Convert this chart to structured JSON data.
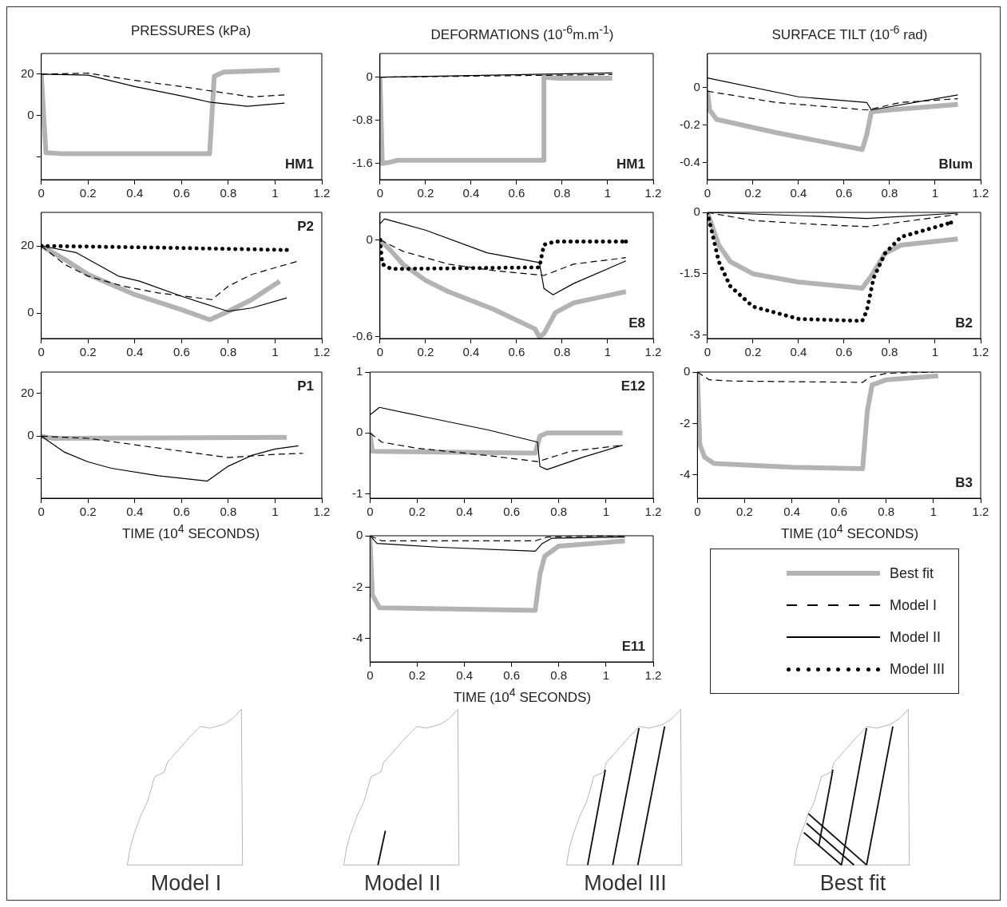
{
  "chart_data": [
    {
      "type": "line",
      "title": "PRESSURES (kPa)",
      "xlim": [
        0,
        1.2
      ],
      "xticks": [
        0,
        0.2,
        0.4,
        0.6,
        0.8,
        1,
        1.2
      ],
      "ylim": [
        -31,
        30
      ],
      "yticks": [
        {
          "value": -20,
          "label": null
        },
        0,
        20
      ],
      "annotations": [
        "HM1"
      ],
      "series": [
        {
          "color": "#b3b3b3",
          "line_style": "solid",
          "x": [
            0,
            0.02,
            0.1,
            0.72,
            0.74,
            0.78,
            1.02
          ],
          "values": [
            20,
            -18,
            -18.5,
            -18.5,
            19,
            21,
            22
          ]
        },
        {
          "color": "#000000",
          "line_style": "dashed",
          "x": [
            0,
            0.2,
            0.4,
            0.6,
            0.75,
            0.9,
            1.04
          ],
          "values": [
            20,
            20.5,
            17,
            14,
            11.5,
            9,
            10
          ]
        },
        {
          "color": "#000000",
          "line_style": "solid",
          "x": [
            0,
            0.2,
            0.4,
            0.6,
            0.72,
            0.88,
            1.04
          ],
          "values": [
            20,
            19.5,
            14,
            9.5,
            6.5,
            4.5,
            6
          ]
        }
      ]
    },
    {
      "type": "line",
      "title": "DEFORMATIONS (10$^{-6}$m.m$^{-1}$)",
      "xlim": [
        0,
        1.2
      ],
      "xticks": [
        0,
        0.2,
        0.4,
        0.6,
        0.8,
        1,
        1.2
      ],
      "ylim": [
        -1.9,
        0.44
      ],
      "yticks": [
        -1.6,
        -0.8,
        0
      ],
      "annotations": [
        "HM1"
      ],
      "series": [
        {
          "color": "#b3b3b3",
          "line_style": "solid",
          "x": [
            0,
            0.01,
            0.04,
            0.08,
            0.72,
            0.72,
            0.78,
            1.02
          ],
          "values": [
            0,
            -1.6,
            -1.58,
            -1.54,
            -1.54,
            0,
            -0.02,
            -0.02
          ]
        },
        {
          "color": "#000000",
          "line_style": "dashed",
          "x": [
            0,
            1.02
          ],
          "values": [
            0,
            0.05
          ]
        },
        {
          "color": "#000000",
          "line_style": "solid",
          "x": [
            0,
            1.02
          ],
          "values": [
            0,
            0.08
          ]
        }
      ]
    },
    {
      "type": "line",
      "title": "SURFACE TILT (10$^{-6}$ rad)",
      "xlim": [
        0,
        1.2
      ],
      "xticks": [
        0,
        0.2,
        0.4,
        0.6,
        0.8,
        1,
        1.2
      ],
      "ylim": [
        -0.49,
        0.18
      ],
      "yticks": [
        -0.4,
        -0.2,
        0
      ],
      "annotations": [
        "Blum"
      ],
      "series": [
        {
          "color": "#b3b3b3",
          "line_style": "solid",
          "x": [
            0,
            0.01,
            0.04,
            0.3,
            0.68,
            0.7,
            0.72,
            0.8,
            1.1
          ],
          "values": [
            -0.02,
            -0.12,
            -0.17,
            -0.24,
            -0.33,
            -0.25,
            -0.13,
            -0.12,
            -0.09
          ]
        },
        {
          "color": "#000000",
          "line_style": "dashed",
          "x": [
            0,
            0.3,
            0.7,
            0.85,
            1.1
          ],
          "values": [
            -0.02,
            -0.08,
            -0.12,
            -0.08,
            -0.06
          ]
        },
        {
          "color": "#000000",
          "line_style": "solid",
          "x": [
            0,
            0.4,
            0.7,
            0.72,
            1.1
          ],
          "values": [
            0.05,
            -0.05,
            -0.08,
            -0.12,
            -0.04
          ]
        }
      ]
    },
    {
      "type": "line",
      "xlim": [
        0,
        1.2
      ],
      "xticks": [
        0,
        0.2,
        0.4,
        0.6,
        0.8,
        1,
        1.2
      ],
      "ylim": [
        -7.6,
        30
      ],
      "yticks": [
        0,
        20
      ],
      "annotations": [
        "P2"
      ],
      "series": [
        {
          "color": "#b3b3b3",
          "line_style": "solid",
          "x": [
            0,
            0.1,
            0.2,
            0.4,
            0.6,
            0.72,
            0.8,
            0.9,
            1.02
          ],
          "values": [
            20,
            16,
            11.5,
            5.5,
            1,
            -2,
            0.5,
            4,
            9.5
          ]
        },
        {
          "color": "#000000",
          "line_style": "dashed",
          "x": [
            0,
            0.1,
            0.2,
            0.35,
            0.5,
            0.73,
            0.8,
            0.9,
            1.1
          ],
          "values": [
            20,
            14.5,
            11,
            8,
            6,
            4,
            8,
            11.5,
            15.5
          ]
        },
        {
          "color": "#000000",
          "line_style": "solid",
          "x": [
            0,
            0.15,
            0.33,
            0.42,
            0.6,
            0.8,
            0.9,
            1.05
          ],
          "values": [
            20,
            18,
            11,
            9.5,
            5,
            0.5,
            1.5,
            4.5
          ]
        },
        {
          "color": "#000000",
          "line_style": "dotted",
          "x": [
            0,
            0.5,
            1.05
          ],
          "values": [
            20,
            19.5,
            18.8
          ]
        }
      ]
    },
    {
      "type": "line",
      "xlim": [
        0,
        1.2
      ],
      "xticks": [
        0,
        0.2,
        0.4,
        0.6,
        0.8,
        1,
        1.2
      ],
      "ylim": [
        -0.61,
        0.17
      ],
      "yticks": [
        -0.6,
        0
      ],
      "annotations": [
        "E8"
      ],
      "series": [
        {
          "color": "#b3b3b3",
          "line_style": "solid",
          "x": [
            0,
            0.05,
            0.1,
            0.2,
            0.3,
            0.5,
            0.68,
            0.7,
            0.72,
            0.77,
            0.85,
            1.08
          ],
          "values": [
            0,
            -0.07,
            -0.15,
            -0.25,
            -0.32,
            -0.43,
            -0.55,
            -0.6,
            -0.58,
            -0.45,
            -0.39,
            -0.32
          ]
        },
        {
          "color": "#000000",
          "line_style": "dashed",
          "x": [
            0,
            0.1,
            0.3,
            0.5,
            0.72,
            0.85,
            1.08
          ],
          "values": [
            0,
            -0.07,
            -0.15,
            -0.19,
            -0.22,
            -0.15,
            -0.11
          ]
        },
        {
          "color": "#000000",
          "line_style": "solid",
          "x": [
            0,
            0.02,
            0.2,
            0.47,
            0.7,
            0.72,
            0.76,
            0.85,
            1.08
          ],
          "values": [
            0.1,
            0.13,
            0.06,
            -0.08,
            -0.14,
            -0.3,
            -0.34,
            -0.27,
            -0.13
          ]
        },
        {
          "color": "#000000",
          "line_style": "dotted",
          "x": [
            0,
            0.01,
            0.05,
            0.7,
            0.72,
            0.77,
            1.08
          ],
          "values": [
            0,
            -0.15,
            -0.18,
            -0.17,
            -0.03,
            -0.01,
            -0.01
          ]
        }
      ]
    },
    {
      "type": "line",
      "xlim": [
        0,
        1.2
      ],
      "xticks": [
        0,
        0.2,
        0.4,
        0.6,
        0.8,
        1,
        1.2
      ],
      "ylim": [
        -3.08,
        0
      ],
      "yticks": [
        -3,
        -1.5,
        0
      ],
      "legend": "bottom",
      "annotations": [
        "B2"
      ],
      "series": [
        {
          "name": "Best fit",
          "color": "#b3b3b3",
          "line_style": "solid",
          "x": [
            0,
            0.05,
            0.1,
            0.2,
            0.4,
            0.68,
            0.72,
            0.78,
            0.85,
            1.1
          ],
          "values": [
            0,
            -0.8,
            -1.2,
            -1.5,
            -1.7,
            -1.85,
            -1.55,
            -1.0,
            -0.8,
            -0.65
          ]
        },
        {
          "name": "Model I",
          "color": "#000000",
          "line_style": "dashed",
          "x": [
            0,
            0.2,
            0.5,
            0.7,
            0.9,
            1.1
          ],
          "values": [
            0,
            -0.2,
            -0.3,
            -0.35,
            -0.2,
            -0.05
          ]
        },
        {
          "name": "Model II",
          "color": "#000000",
          "line_style": "solid",
          "x": [
            0,
            0.5,
            0.7,
            1.1
          ],
          "values": [
            0,
            -0.1,
            -0.15,
            -0.02
          ]
        },
        {
          "name": "Model III",
          "color": "#000000",
          "line_style": "dotted",
          "x": [
            0,
            0.05,
            0.1,
            0.2,
            0.4,
            0.68,
            0.7,
            0.73,
            0.78,
            0.85,
            1.07
          ],
          "values": [
            0,
            -1.2,
            -1.8,
            -2.3,
            -2.6,
            -2.65,
            -2.4,
            -1.6,
            -1.0,
            -0.6,
            -0.25
          ]
        }
      ]
    },
    {
      "type": "line",
      "xlabel": "TIME (10$^{4}$ SECONDS)",
      "xlim": [
        0,
        1.2
      ],
      "xticks": [
        0,
        0.2,
        0.4,
        0.6,
        0.8,
        1,
        1.2
      ],
      "ylim": [
        -29,
        30
      ],
      "yticks": [
        {
          "value": -20,
          "label": null
        },
        0,
        20
      ],
      "annotations": [
        "P1"
      ],
      "series": [
        {
          "color": "#b3b3b3",
          "line_style": "solid",
          "x": [
            0,
            0.05,
            1.05
          ],
          "values": [
            0,
            -1,
            -0.5
          ]
        },
        {
          "color": "#000000",
          "line_style": "dashed",
          "x": [
            0,
            0.2,
            0.4,
            0.6,
            0.8,
            1,
            1.12
          ],
          "values": [
            0,
            -1,
            -4,
            -7,
            -10,
            -8.5,
            -8
          ]
        },
        {
          "color": "#000000",
          "line_style": "solid",
          "x": [
            0,
            0.1,
            0.2,
            0.3,
            0.5,
            0.71,
            0.8,
            0.9,
            1.0,
            1.1
          ],
          "values": [
            0,
            -7.5,
            -12,
            -15,
            -18.5,
            -21,
            -14,
            -9,
            -6,
            -4.5
          ]
        }
      ]
    },
    {
      "type": "line",
      "xlim": [
        0,
        1.2
      ],
      "xticks": [
        0,
        0.2,
        0.4,
        0.6,
        0.8,
        1,
        1.2
      ],
      "ylim": [
        -1.07,
        1
      ],
      "yticks": [
        -1,
        0,
        1
      ],
      "annotations": [
        "E12"
      ],
      "series": [
        {
          "color": "#b3b3b3",
          "line_style": "solid",
          "x": [
            0,
            0.01,
            0.7,
            0.72,
            0.75,
            1.07
          ],
          "values": [
            0,
            -0.3,
            -0.33,
            -0.05,
            0,
            0
          ]
        },
        {
          "color": "#000000",
          "line_style": "dashed",
          "x": [
            0,
            0.05,
            0.2,
            0.5,
            0.71,
            0.85,
            1.07
          ],
          "values": [
            0,
            -0.15,
            -0.25,
            -0.37,
            -0.47,
            -0.3,
            -0.2
          ]
        },
        {
          "color": "#000000",
          "line_style": "solid",
          "x": [
            0,
            0.04,
            0.25,
            0.5,
            0.71,
            0.72,
            0.75,
            0.9,
            1.07
          ],
          "values": [
            0.3,
            0.42,
            0.25,
            0.05,
            -0.15,
            -0.55,
            -0.6,
            -0.4,
            -0.2
          ]
        }
      ]
    },
    {
      "type": "line",
      "xlabel": "TIME (10$^{4}$ SECONDS)",
      "xlim": [
        0,
        1.2
      ],
      "xticks": [
        0,
        0.2,
        0.4,
        0.6,
        0.8,
        1,
        1.2
      ],
      "ylim": [
        -4.9,
        0
      ],
      "yticks": [
        -4,
        -2,
        0
      ],
      "annotations": [
        "B3"
      ],
      "series": [
        {
          "color": "#b3b3b3",
          "line_style": "solid",
          "x": [
            0,
            0.01,
            0.03,
            0.07,
            0.4,
            0.7,
            0.72,
            0.74,
            0.8,
            1.02
          ],
          "values": [
            0,
            -2.8,
            -3.3,
            -3.55,
            -3.7,
            -3.75,
            -1.5,
            -0.5,
            -0.3,
            -0.15
          ]
        },
        {
          "color": "#000000",
          "line_style": "dashed",
          "x": [
            0,
            0.05,
            0.15,
            0.7,
            0.73,
            0.8,
            1.0
          ],
          "values": [
            0,
            -0.3,
            -0.35,
            -0.4,
            -0.2,
            -0.05,
            0
          ]
        }
      ]
    },
    {
      "type": "line",
      "xlabel": "TIME (10$^{4}$ SECONDS)",
      "xlim": [
        0,
        1.2
      ],
      "xticks": [
        0,
        0.2,
        0.4,
        0.6,
        0.8,
        1,
        1.2
      ],
      "ylim": [
        -4.9,
        0
      ],
      "yticks": [
        -4,
        -2,
        0
      ],
      "annotations": [
        "E11"
      ],
      "series": [
        {
          "color": "#b3b3b3",
          "line_style": "solid",
          "x": [
            0,
            0.01,
            0.04,
            0.7,
            0.72,
            0.74,
            0.8,
            1.08
          ],
          "values": [
            -0.1,
            -2.3,
            -2.8,
            -2.9,
            -1.5,
            -0.8,
            -0.4,
            -0.2
          ]
        },
        {
          "color": "#000000",
          "line_style": "dashed",
          "x": [
            0,
            0.05,
            0.7,
            0.75,
            1.08
          ],
          "values": [
            0,
            -0.2,
            -0.2,
            -0.05,
            0
          ]
        },
        {
          "color": "#000000",
          "line_style": "solid",
          "x": [
            0,
            0.03,
            0.3,
            0.7,
            0.73,
            0.77,
            1.08
          ],
          "values": [
            0,
            -0.3,
            -0.45,
            -0.6,
            -0.3,
            -0.1,
            -0.05
          ]
        }
      ]
    },
    {
      "type": "other",
      "annotations": [
        "Model I",
        "Model II",
        "Model III",
        "Best fit"
      ]
    }
  ]
}
